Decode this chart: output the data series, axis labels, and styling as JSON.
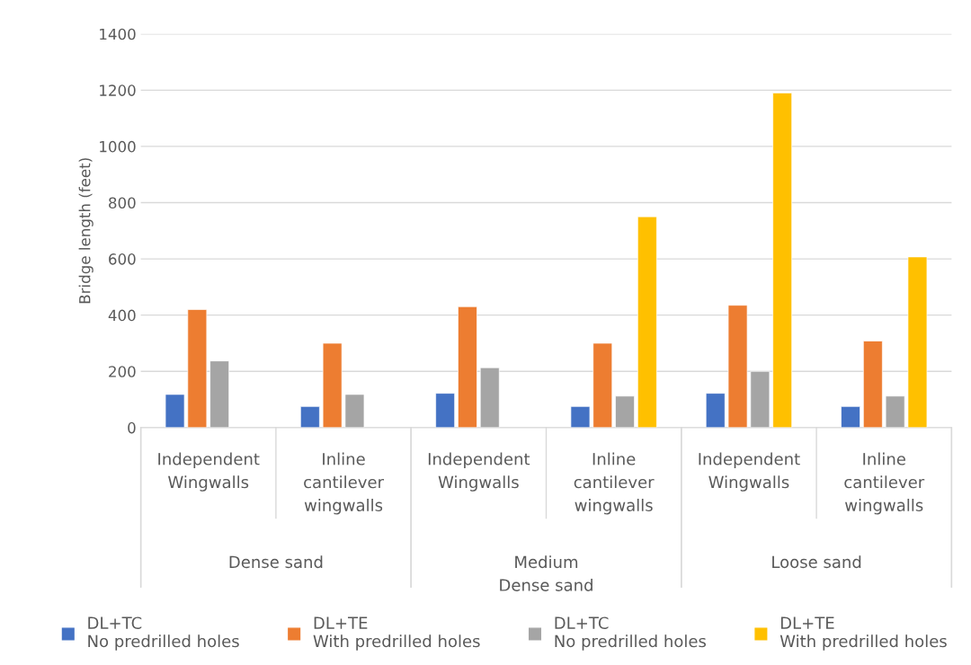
{
  "chart_data": {
    "type": "bar",
    "ylabel": "Bridge length (feet)",
    "categories": [
      "Independent\nWingwalls",
      "Inline\ncantilever\nwingwalls",
      "Independent\nWingwalls",
      "Inline\ncantilever\nwingwalls",
      "Independent\nWingwalls",
      "Inline\ncantilever\nwingwalls"
    ],
    "annotations": [
      "Dense sand",
      "Medium\nDense sand",
      "Loose sand"
    ],
    "series": [
      {
        "name": "DL+TC\nNo predrilled holes",
        "color": "#4472c4",
        "values": [
          118,
          75,
          122,
          75,
          122,
          75
        ]
      },
      {
        "name": "DL+TE\nWith predrilled holes",
        "color": "#ed7d31",
        "values": [
          420,
          300,
          430,
          300,
          435,
          308
        ]
      },
      {
        "name": "DL+TC\nNo predrilled holes",
        "color": "#a5a5a5",
        "values": [
          237,
          118,
          213,
          112,
          200,
          112
        ]
      },
      {
        "name": "DL+TE\nWith predrilled holes",
        "color": "#ffc000",
        "values": [
          null,
          null,
          null,
          750,
          1190,
          607
        ]
      }
    ],
    "ylim": [
      0,
      1400
    ],
    "yticks": [
      0,
      200,
      400,
      600,
      800,
      1000,
      1200,
      1400
    ],
    "grid": "y",
    "legend": "bottom"
  }
}
